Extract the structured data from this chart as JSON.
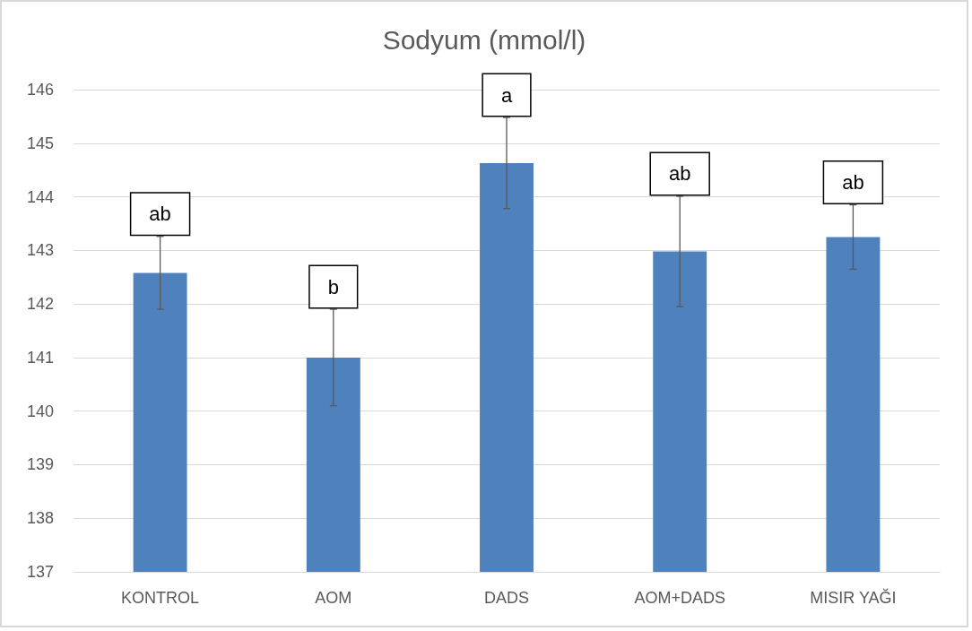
{
  "chart_data": {
    "type": "bar",
    "title": "Sodyum (mmol/l)",
    "categories": [
      "KONTROL",
      "AOM",
      "DADS",
      "AOM+DADS",
      "MISIR YAĞI"
    ],
    "values": [
      142.58,
      141.0,
      144.63,
      142.98,
      143.25
    ],
    "errors": [
      0.68,
      0.9,
      0.85,
      1.03,
      0.6
    ],
    "color": "#4f81bd",
    "ylim": [
      137,
      146
    ],
    "yticks": [
      137,
      138,
      139,
      140,
      141,
      142,
      143,
      144,
      145,
      146
    ],
    "grid": "y",
    "annotations": [
      "ab",
      "b",
      "a",
      "ab",
      "ab"
    ]
  }
}
